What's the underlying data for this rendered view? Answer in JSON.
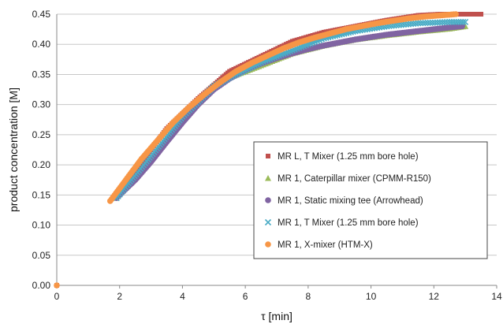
{
  "chart_data": {
    "type": "scatter",
    "title": "",
    "xlabel": "τ [min]",
    "ylabel": "product concentration [M]",
    "xlim": [
      0,
      14
    ],
    "ylim": [
      0,
      0.45
    ],
    "x_ticks": [
      "0",
      "2",
      "4",
      "6",
      "8",
      "10",
      "12",
      "14"
    ],
    "y_ticks": [
      "0.00",
      "0.05",
      "0.10",
      "0.15",
      "0.20",
      "0.25",
      "0.30",
      "0.35",
      "0.40",
      "0.45"
    ],
    "grid": "horizontal",
    "legend_position": "center-right",
    "series": [
      {
        "name": "MR L, T Mixer (1.25 mm bore hole)",
        "marker": "square",
        "color": "#C0504D",
        "x": [
          0,
          1.9,
          2.5,
          3.5,
          4.5,
          5.5,
          6.5,
          7.5,
          8.5,
          9.5,
          10.5,
          11.5,
          12.2,
          12.8,
          13.5
        ],
        "y": [
          0.0,
          0.145,
          0.19,
          0.26,
          0.31,
          0.355,
          0.38,
          0.405,
          0.42,
          0.43,
          0.44,
          0.448,
          0.45,
          0.45,
          0.45
        ]
      },
      {
        "name": "MR 1, Caterpillar mixer (CPMM-R150)",
        "marker": "triangle",
        "color": "#9BBB59",
        "x": [
          1.9,
          3,
          4,
          5,
          5.5,
          6.5,
          7.5,
          8.5,
          9.5,
          10.5,
          11.5,
          12.5,
          13
        ],
        "y": [
          0.145,
          0.21,
          0.275,
          0.33,
          0.345,
          0.365,
          0.385,
          0.398,
          0.408,
          0.415,
          0.421,
          0.426,
          0.43
        ]
      },
      {
        "name": "MR 1, Static mixing tee (Arrowhead)",
        "marker": "circle",
        "color": "#8064A2",
        "x": [
          1.9,
          2.5,
          3,
          3.5,
          4,
          4.5,
          5,
          5.5,
          6,
          6.5,
          7,
          7.5,
          8,
          8.5,
          9,
          9.5,
          10,
          10.5,
          11,
          11.5,
          12,
          12.5,
          12.9
        ],
        "y": [
          0.145,
          0.175,
          0.205,
          0.238,
          0.27,
          0.3,
          0.325,
          0.343,
          0.357,
          0.368,
          0.377,
          0.385,
          0.392,
          0.398,
          0.403,
          0.408,
          0.412,
          0.416,
          0.419,
          0.422,
          0.425,
          0.428,
          0.43
        ]
      },
      {
        "name": "MR 1, T Mixer (1.25 mm bore hole)",
        "marker": "x",
        "color": "#4BACC6",
        "x": [
          1.9,
          3,
          4,
          5,
          5.5,
          6.5,
          7.5,
          8.5,
          9.5,
          10.5,
          11.5,
          12.5,
          13
        ],
        "y": [
          0.145,
          0.215,
          0.28,
          0.33,
          0.345,
          0.37,
          0.39,
          0.41,
          0.422,
          0.43,
          0.435,
          0.437,
          0.437
        ]
      },
      {
        "name": "MR 1, X-mixer (HTM-X)",
        "marker": "circle",
        "color": "#F79646",
        "x": [
          0,
          1.7,
          2.2,
          2.7,
          3.2,
          3.7,
          4.2,
          4.7,
          5.2,
          5.7,
          6.2,
          6.7,
          7.2,
          7.7,
          8.2,
          8.7,
          9.2,
          9.7,
          10.2,
          10.7,
          11.2,
          11.7,
          12.2,
          12.7
        ],
        "y": [
          0.0,
          0.14,
          0.175,
          0.21,
          0.24,
          0.27,
          0.295,
          0.317,
          0.337,
          0.355,
          0.369,
          0.381,
          0.393,
          0.403,
          0.411,
          0.418,
          0.425,
          0.43,
          0.435,
          0.439,
          0.443,
          0.446,
          0.448,
          0.45
        ]
      }
    ]
  }
}
